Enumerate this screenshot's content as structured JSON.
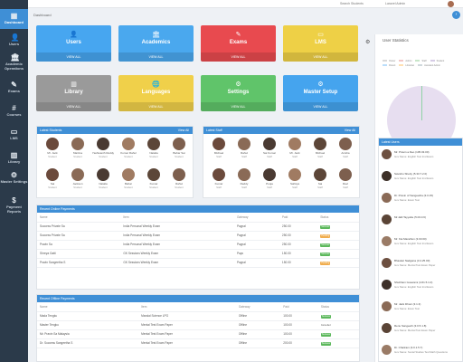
{
  "sidebar": {
    "items": [
      {
        "label": "Dashboard",
        "icon": "dashboard-icon"
      },
      {
        "label": "Users",
        "icon": "users-icon"
      },
      {
        "label": "Academic Operations",
        "icon": "academic-icon"
      },
      {
        "label": "Exams",
        "icon": "exams-icon"
      },
      {
        "label": "Courses",
        "icon": "courses-icon"
      },
      {
        "label": "LMS",
        "icon": "lms-icon"
      },
      {
        "label": "Library",
        "icon": "library-icon"
      },
      {
        "label": "Master Settings",
        "icon": "settings-icon"
      },
      {
        "label": "Payment Reports",
        "icon": "payment-icon"
      }
    ]
  },
  "topbar": {
    "search": "Search Students",
    "user": "Laravel Admin"
  },
  "breadcrumb": "Dashboard",
  "tiles": [
    {
      "label": "Users",
      "footer": "VIEW ALL",
      "color": "#47a6f0",
      "icon": "users-icon"
    },
    {
      "label": "Academics",
      "footer": "VIEW ALL",
      "color": "#4aa8ee",
      "icon": "academics-icon"
    },
    {
      "label": "Exams",
      "footer": "VIEW ALL",
      "color": "#e84a4f",
      "icon": "exams-icon"
    },
    {
      "label": "LMS",
      "footer": "VIEW ALL",
      "color": "#eed046",
      "icon": "lms-icon"
    },
    {
      "label": "Library",
      "footer": "VIEW ALL",
      "color": "#9a9a9a",
      "icon": "library-icon"
    },
    {
      "label": "Languages",
      "footer": "VIEW ALL",
      "color": "#f0d04a",
      "icon": "languages-icon"
    },
    {
      "label": "Settings",
      "footer": "VIEW ALL",
      "color": "#60c46a",
      "icon": "settings-icon"
    },
    {
      "label": "Master Setup",
      "footer": "VIEW ALL",
      "color": "#45a4ee",
      "icon": "master-setup-icon"
    }
  ],
  "latest_students": {
    "title": "Latest Students",
    "view_all": "View All",
    "people": [
      {
        "name": "Mr. Jack",
        "role": "Student"
      },
      {
        "name": "Martina",
        "role": "Student"
      },
      {
        "name": "Yashwanth Reddy",
        "role": "Student"
      },
      {
        "name": "Kumar Rahul",
        "role": "Student"
      },
      {
        "name": "Natalia",
        "role": "Student"
      },
      {
        "name": "Bahar Sai",
        "role": "Student"
      },
      {
        "name": "Sai",
        "role": "Student"
      },
      {
        "name": "Jackson",
        "role": "Student"
      },
      {
        "name": "Natalia",
        "role": "Student"
      },
      {
        "name": "Bahar",
        "role": "Student"
      },
      {
        "name": "Kumar",
        "role": "Student"
      },
      {
        "name": "Rahul",
        "role": "Student"
      }
    ]
  },
  "latest_staff": {
    "title": "Latest Staff",
    "view_all": "View All",
    "people": [
      {
        "name": "Michael",
        "role": "Staff"
      },
      {
        "name": "Rahul",
        "role": "Staff"
      },
      {
        "name": "Sai Kumar",
        "role": "Staff"
      },
      {
        "name": "Mr. Jack",
        "role": "Staff"
      },
      {
        "name": "Michael",
        "role": "Staff"
      },
      {
        "name": "Anisha",
        "role": "Staff"
      },
      {
        "name": "Kumar",
        "role": "Staff"
      },
      {
        "name": "Reddy",
        "role": "Staff"
      },
      {
        "name": "Pooja",
        "role": "Staff"
      },
      {
        "name": "Sahitya",
        "role": "Staff"
      },
      {
        "name": "Sai",
        "role": "Staff"
      },
      {
        "name": "Ravi",
        "role": "Staff"
      }
    ]
  },
  "online_payments": {
    "title": "Recent Online Payments",
    "headers": [
      "Name",
      "Item",
      "Gateway",
      "Paid",
      "Status"
    ],
    "rows": [
      {
        "name": "Success Private Sa",
        "item": "India Personal Weekly Exam",
        "gateway": "Paypal",
        "paid": "250.00",
        "status": "Success",
        "status_color": "#5cb85c"
      },
      {
        "name": "Success Private Sa",
        "item": "India Personal Weekly Exam",
        "gateway": "Paypal",
        "paid": "250.00",
        "status": "Pending",
        "status_color": "#f0ad4e"
      },
      {
        "name": "Pravin Sa",
        "item": "India Personal Weekly Exam",
        "gateway": "Paypal",
        "paid": "250.00",
        "status": "Success",
        "status_color": "#5cb85c"
      },
      {
        "name": "Shreya Gatti",
        "item": "GK Sessions Weekly Exam",
        "gateway": "Payu",
        "paid": "150.00",
        "status": "Success",
        "status_color": "#5cb85c"
      },
      {
        "name": "Pravin Sangeetha S",
        "item": "GK Sessions Weekly Exam",
        "gateway": "Paypal",
        "paid": "150.00",
        "status": "Pending",
        "status_color": "#f0ad4e"
      }
    ]
  },
  "offline_payments": {
    "title": "Recent Offline Payments",
    "headers": [
      "Name",
      "Item",
      "Gateway",
      "Paid",
      "Status"
    ],
    "rows": [
      {
        "name": "Mada Tengku",
        "item": "Mandal Science LPG",
        "gateway": "Offline",
        "paid": "100.00",
        "status": "Success",
        "status_color": "#5cb85c"
      },
      {
        "name": "Master Tengku",
        "item": "Mental Test Exam Paper",
        "gateway": "Offline",
        "paid": "100.00",
        "status": "Cancelled",
        "status_color": ""
      },
      {
        "name": "Mr. Pravin Sa Malaysia",
        "item": "Mental Test Exam Paper",
        "gateway": "Offline",
        "paid": "100.00",
        "status": "Success",
        "status_color": "#5cb85c"
      },
      {
        "name": "Dr. Success Sangeetha S",
        "item": "Mental Test Exam Paper",
        "gateway": "Offline",
        "paid": "200.00",
        "status": "Success",
        "status_color": "#5cb85c"
      }
    ]
  },
  "user_statistics": {
    "title": "User Statistics",
    "legend": [
      "Owner",
      "Admin",
      "Staff",
      "Student",
      "Parent",
      "Librarian",
      "Assistant Admin"
    ]
  },
  "latest_updates": {
    "title": "Latest Users",
    "items": [
      {
        "line1": "Mr. Pravin a Deo (105.03.00)",
        "line2": "Gov Name: English Test 2nd Exam"
      },
      {
        "line1": "Savishu Shetty (5.33.7.2.0)",
        "line2": "Gov Name: English Test 2nd Exam"
      },
      {
        "line1": "Dr. Pravin of Sangeetha (3.0.15)",
        "line2": "Gov Name: Exam Test"
      },
      {
        "line1": "Mr.Jalil Tayyabe (5.03.0.6)",
        "line2": ""
      },
      {
        "line1": "Mr. Kia Marathon (3.03.00)",
        "line2": "Gov Name: English Test 2nd Exam"
      },
      {
        "line1": "Bhaskar Nadgana (3.4.25.00)",
        "line2": "Gov Name: Mental Test Exam Paper"
      },
      {
        "line1": "Shubham Goswami (4.61.5.1.0)",
        "line2": "Gov Name: English Test 2nd Exam"
      },
      {
        "line1": "Mr. Jack Dhoni (3.1.3)",
        "line2": "Gov Name: Exam Test"
      },
      {
        "line1": "Renu Sangeeth (3.0.5.1.8)",
        "line2": "Gov Name: Mental Test Exam Paper"
      },
      {
        "line1": "Dr. Chaitram (3.0.1.5.7)",
        "line2": "Gov Name: Social Studies Test Math Questions"
      }
    ]
  }
}
